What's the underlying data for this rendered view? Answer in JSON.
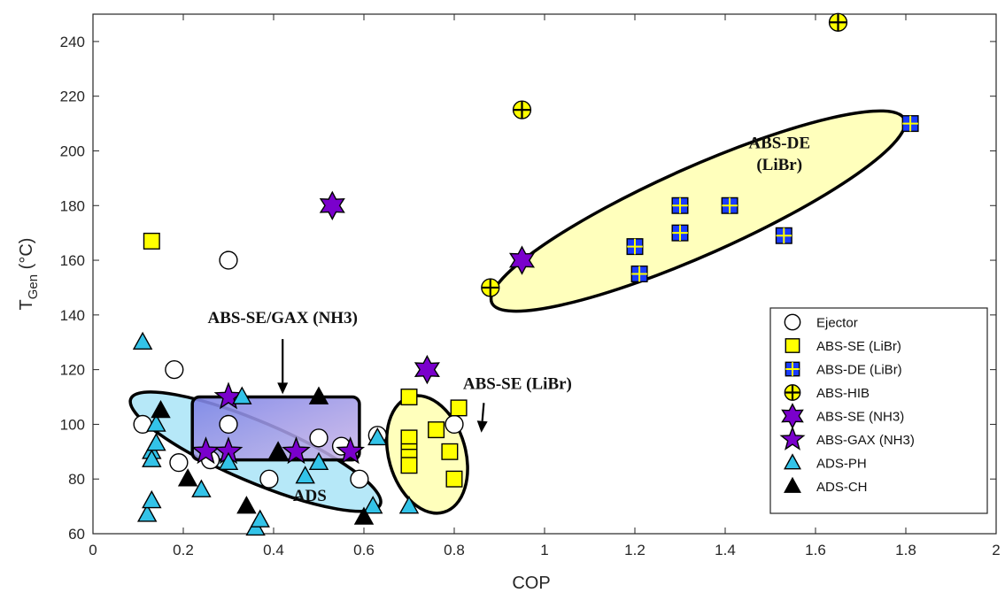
{
  "chart_data": {
    "type": "scatter",
    "xlabel": "COP",
    "ylabel": "T",
    "ylabel_sub": "Gen",
    "ylabel_unit": " (°C)",
    "xlim": [
      0,
      2
    ],
    "ylim": [
      60,
      250
    ],
    "xticks": [
      0,
      0.2,
      0.4,
      0.6,
      0.8,
      1,
      1.2,
      1.4,
      1.6,
      1.8,
      2
    ],
    "xtick_labels": [
      "0",
      "0.2",
      "0.4",
      "0.6",
      "0.8",
      "1",
      "1.2",
      "1.4",
      "1.6",
      "1.8",
      "2"
    ],
    "yticks": [
      60,
      80,
      100,
      120,
      140,
      160,
      180,
      200,
      220,
      240
    ],
    "ytick_labels": [
      "60",
      "80",
      "100",
      "120",
      "140",
      "160",
      "180",
      "200",
      "220",
      "240"
    ],
    "grid": false,
    "legend_position": "bottom-right",
    "series": [
      {
        "name": "Ejector",
        "marker": "circle",
        "color": "#ffffff",
        "x": [
          0.11,
          0.18,
          0.19,
          0.26,
          0.3,
          0.3,
          0.39,
          0.5,
          0.55,
          0.59,
          0.63,
          0.8
        ],
        "y": [
          100,
          120,
          86,
          87,
          100,
          160,
          80,
          95,
          92,
          80,
          96,
          100
        ]
      },
      {
        "name": "ABS-SE (LiBr)",
        "marker": "square",
        "color": "#ffff00",
        "x": [
          0.13,
          0.7,
          0.7,
          0.7,
          0.7,
          0.7,
          0.76,
          0.79,
          0.8,
          0.81
        ],
        "y": [
          167,
          110,
          95,
          90,
          88,
          85,
          98,
          90,
          80,
          106
        ]
      },
      {
        "name": "ABS-DE (LiBr)",
        "marker": "square-cross",
        "color": "#1a3cff",
        "x": [
          1.2,
          1.21,
          1.3,
          1.3,
          1.41,
          1.53,
          1.81
        ],
        "y": [
          165,
          155,
          180,
          170,
          180,
          169,
          210
        ]
      },
      {
        "name": "ABS-HIB",
        "marker": "circle-cross",
        "color": "#ffff00",
        "x": [
          0.88,
          0.95,
          1.65
        ],
        "y": [
          150,
          215,
          247
        ]
      },
      {
        "name": "ABS-SE (NH3)",
        "marker": "hexagram",
        "color": "#7a00cc",
        "x": [
          0.53,
          0.74,
          0.95
        ],
        "y": [
          180,
          120,
          160
        ]
      },
      {
        "name": "ABS-GAX (NH3)",
        "marker": "pentagram",
        "color": "#7a00cc",
        "x": [
          0.25,
          0.3,
          0.3,
          0.45,
          0.57
        ],
        "y": [
          90,
          90,
          110,
          90,
          90
        ]
      },
      {
        "name": "ADS-PH",
        "marker": "triangle",
        "color": "#33c3e8",
        "x": [
          0.11,
          0.12,
          0.13,
          0.13,
          0.13,
          0.14,
          0.14,
          0.24,
          0.3,
          0.33,
          0.36,
          0.37,
          0.47,
          0.5,
          0.62,
          0.63,
          0.7
        ],
        "y": [
          130,
          67,
          72,
          90,
          87,
          100,
          93,
          76,
          86,
          110,
          62,
          65,
          81,
          86,
          70,
          95,
          70
        ]
      },
      {
        "name": "ADS-CH",
        "marker": "triangle",
        "color": "#000000",
        "x": [
          0.15,
          0.21,
          0.34,
          0.41,
          0.5,
          0.6
        ],
        "y": [
          105,
          80,
          70,
          90,
          110,
          66
        ]
      }
    ],
    "regions": [
      {
        "label_lines": [
          "ABS-DE",
          "(LiBr)"
        ],
        "shape": "ellipse",
        "fill": "#ffffb0",
        "cx": 1.34,
        "cy": 178,
        "rx_cop": 0.5,
        "ry_temp": 16,
        "angle_deg": -24
      },
      {
        "label_lines": [
          "ADS"
        ],
        "shape": "ellipse",
        "fill": "#a9e4f7",
        "cx": 0.36,
        "cy": 90,
        "rx_cop": 0.3,
        "ry_temp": 11,
        "angle_deg": 23
      },
      {
        "label_lines": [
          "ABS-SE/GAX (NH3)"
        ],
        "shape": "rounded-rect",
        "fill": "#8a8ae6",
        "x0": 0.22,
        "x1": 0.59,
        "y0": 87,
        "y1": 110
      },
      {
        "label_lines": [
          "ABS-SE (LiBr)"
        ],
        "shape": "ellipse",
        "fill": "#ffffb0",
        "cx": 0.74,
        "cy": 89,
        "rx_cop": 0.085,
        "ry_temp": 22,
        "angle_deg": -16
      }
    ],
    "annotations": [
      {
        "text": "ABS-DE",
        "x": 1.52,
        "y": 201
      },
      {
        "text": "(LiBr)",
        "x": 1.52,
        "y": 193
      },
      {
        "text": "ADS",
        "x": 0.48,
        "y": 72
      },
      {
        "text": "ABS-SE/GAX (NH3)",
        "x": 0.42,
        "y": 137,
        "arrow_to": [
          0.42,
          111
        ]
      },
      {
        "text": "ABS-SE (LiBr)",
        "x": 0.94,
        "y": 113,
        "arrow_to": [
          0.86,
          97
        ]
      }
    ]
  }
}
